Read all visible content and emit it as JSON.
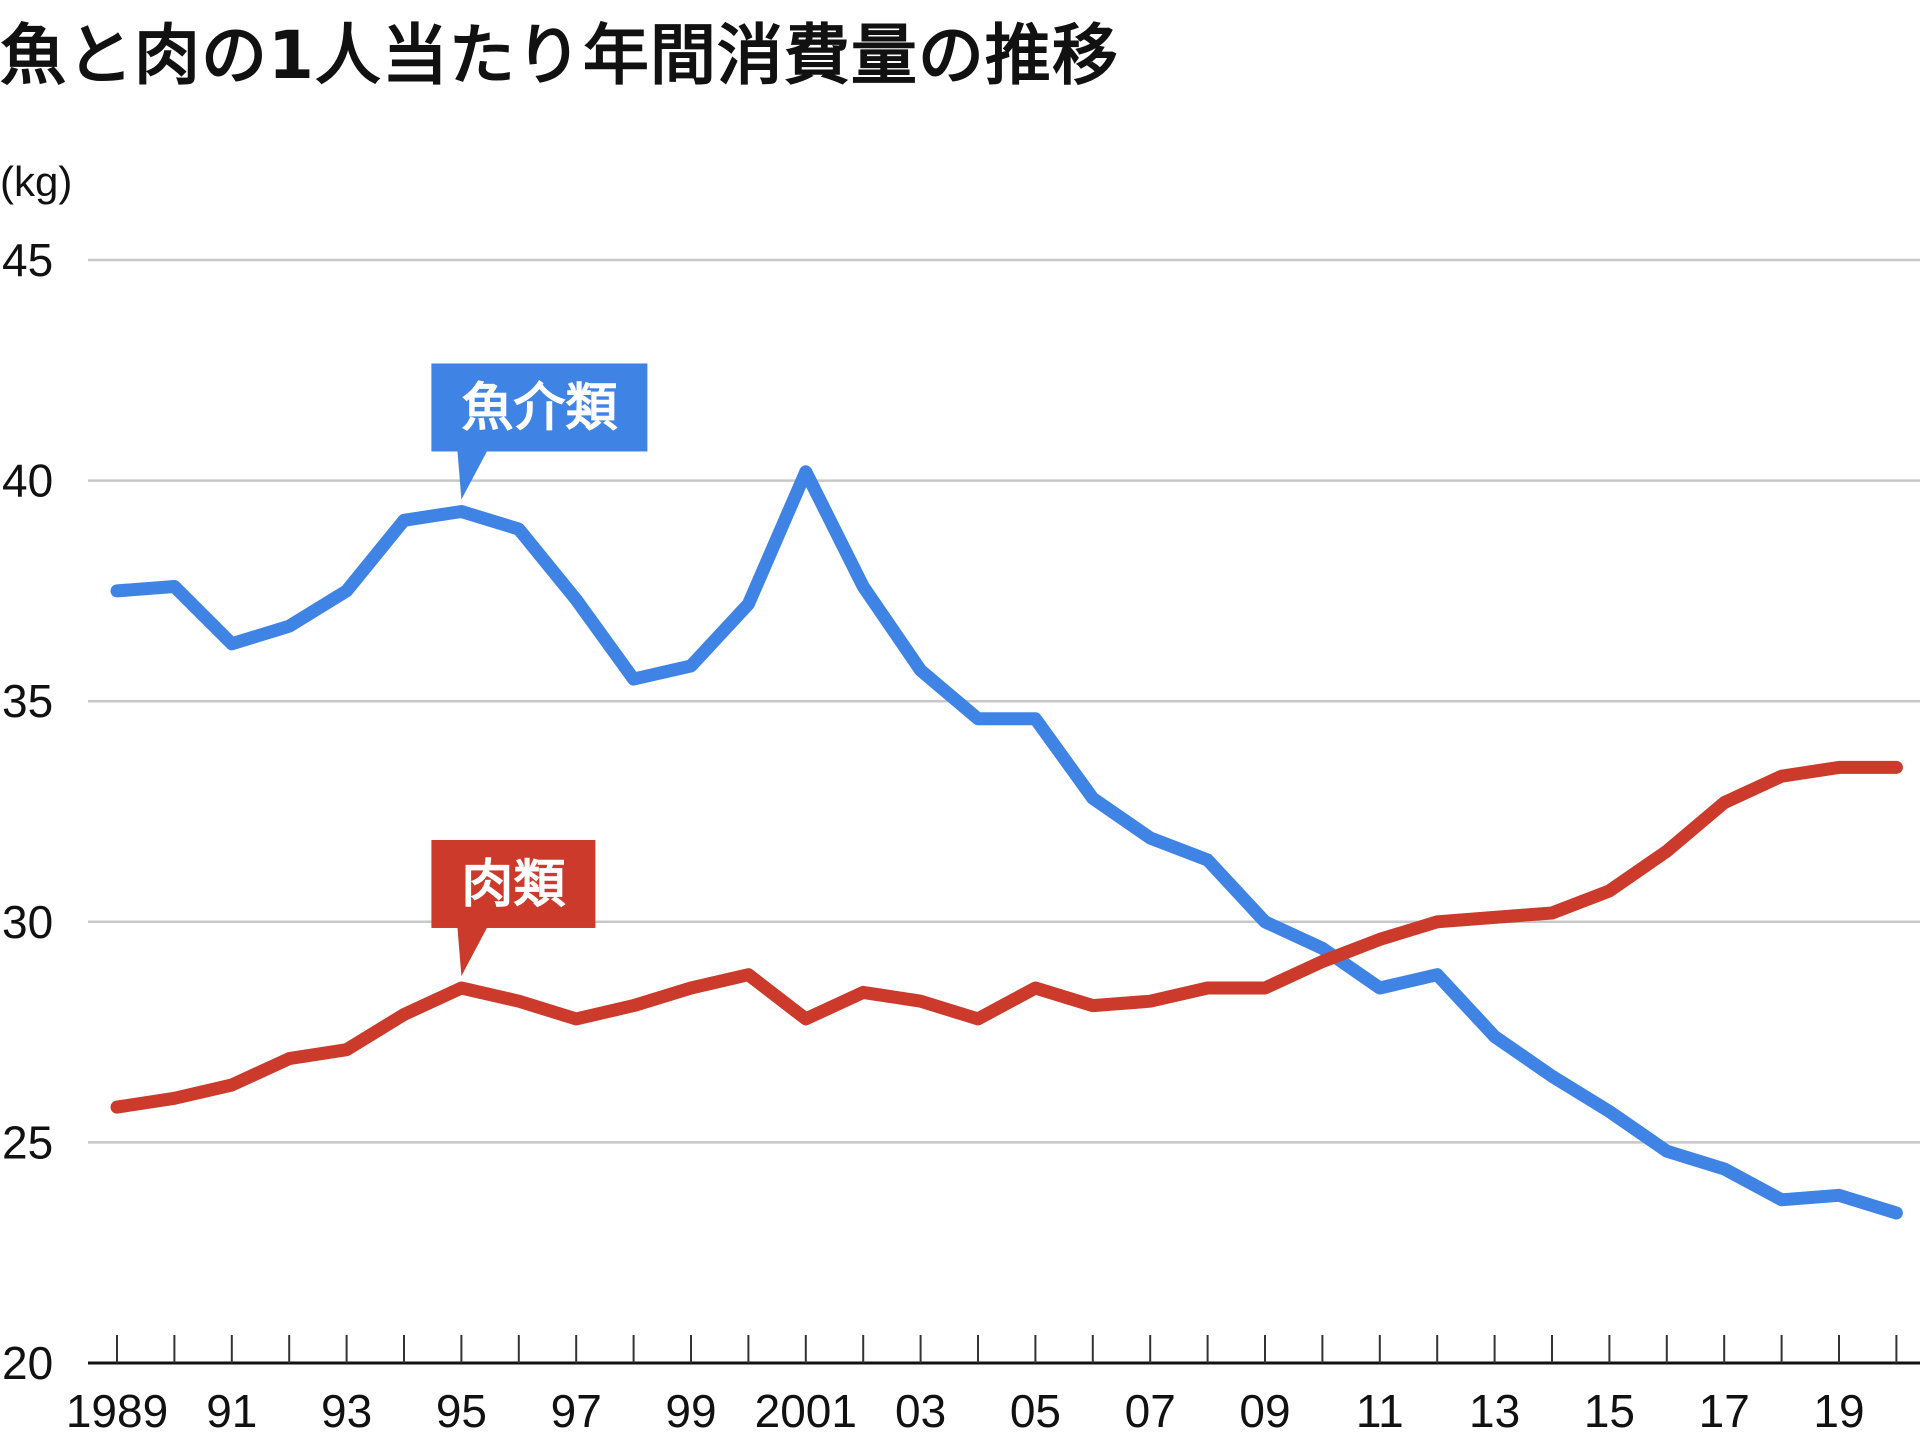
{
  "title": "魚と肉の1人当たり年間消費量の推移",
  "chart_data": {
    "type": "line",
    "title": "魚と肉の1人当たり年間消費量の推移",
    "ylabel": "(kg)",
    "xlabel": "",
    "ylim": [
      20,
      45
    ],
    "yticks": [
      20,
      25,
      30,
      35,
      40,
      45
    ],
    "grid": true,
    "x": [
      1989,
      1990,
      1991,
      1992,
      1993,
      1994,
      1995,
      1996,
      1997,
      1998,
      1999,
      2000,
      2001,
      2002,
      2003,
      2004,
      2005,
      2006,
      2007,
      2008,
      2009,
      2010,
      2011,
      2012,
      2013,
      2014,
      2015,
      2016,
      2017,
      2018,
      2019,
      2020
    ],
    "xtick_labels": [
      {
        "x": 1989,
        "label": "1989"
      },
      {
        "x": 1991,
        "label": "91"
      },
      {
        "x": 1993,
        "label": "93"
      },
      {
        "x": 1995,
        "label": "95"
      },
      {
        "x": 1997,
        "label": "97"
      },
      {
        "x": 1999,
        "label": "99"
      },
      {
        "x": 2001,
        "label": "2001"
      },
      {
        "x": 2003,
        "label": "03"
      },
      {
        "x": 2005,
        "label": "05"
      },
      {
        "x": 2007,
        "label": "07"
      },
      {
        "x": 2009,
        "label": "09"
      },
      {
        "x": 2011,
        "label": "11"
      },
      {
        "x": 2013,
        "label": "13"
      },
      {
        "x": 2015,
        "label": "15"
      },
      {
        "x": 2017,
        "label": "17"
      },
      {
        "x": 2019,
        "label": "19"
      }
    ],
    "series": [
      {
        "name": "魚介類",
        "color": "#3f84e5",
        "label_at": 1995,
        "values": [
          37.5,
          37.6,
          36.3,
          36.7,
          37.5,
          39.1,
          39.3,
          38.9,
          37.3,
          35.5,
          35.8,
          37.2,
          40.2,
          37.6,
          35.7,
          34.6,
          34.6,
          32.8,
          31.9,
          31.4,
          30.0,
          29.4,
          28.5,
          28.8,
          27.4,
          26.5,
          25.7,
          24.8,
          24.4,
          23.7,
          23.8,
          23.4
        ]
      },
      {
        "name": "肉類",
        "color": "#cc3a2b",
        "label_at": 1995,
        "values": [
          25.8,
          26.0,
          26.3,
          26.9,
          27.1,
          27.9,
          28.5,
          28.2,
          27.8,
          28.1,
          28.5,
          28.8,
          27.8,
          28.4,
          28.2,
          27.8,
          28.5,
          28.1,
          28.2,
          28.5,
          28.5,
          29.1,
          29.6,
          30.0,
          30.1,
          30.2,
          30.7,
          31.6,
          32.7,
          33.3,
          33.5,
          33.5
        ]
      }
    ]
  }
}
